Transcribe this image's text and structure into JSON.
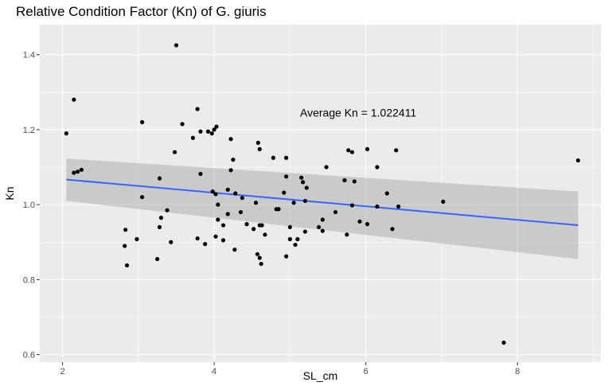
{
  "chart_data": {
    "type": "scatter",
    "title": "Relative Condition Factor (Kn) of G. giuris",
    "xlabel": "SL_cm",
    "ylabel": "Kn",
    "xlim": [
      1.7,
      9.1
    ],
    "ylim": [
      0.58,
      1.48
    ],
    "x_ticks": [
      2,
      4,
      6,
      8
    ],
    "y_ticks": [
      0.6,
      0.8,
      1.0,
      1.2,
      1.4
    ],
    "y_tick_labels": [
      "0.6",
      "0.8",
      "1.0",
      "1.2",
      "1.4"
    ],
    "grid": true,
    "background": "#ebebeb",
    "point_color": "#000000",
    "annotation": {
      "text": "Average Kn = 1.022411",
      "x": 5.9,
      "y": 1.245
    },
    "trend": {
      "method": "linear",
      "color": "#3366ff",
      "band_color": "#999999",
      "x_start": 2.05,
      "y_start": 1.067,
      "y_start_low": 1.01,
      "y_start_high": 1.123,
      "x_end": 8.8,
      "y_end": 0.945,
      "y_end_low": 0.855,
      "y_end_high": 1.035
    },
    "points": [
      {
        "x": 2.05,
        "y": 1.19
      },
      {
        "x": 2.15,
        "y": 1.28
      },
      {
        "x": 2.15,
        "y": 1.085
      },
      {
        "x": 2.2,
        "y": 1.088
      },
      {
        "x": 2.25,
        "y": 1.093
      },
      {
        "x": 2.82,
        "y": 0.89
      },
      {
        "x": 2.83,
        "y": 0.933
      },
      {
        "x": 2.85,
        "y": 0.838
      },
      {
        "x": 2.98,
        "y": 0.908
      },
      {
        "x": 3.05,
        "y": 1.22
      },
      {
        "x": 3.05,
        "y": 1.02
      },
      {
        "x": 3.25,
        "y": 0.855
      },
      {
        "x": 3.28,
        "y": 0.94
      },
      {
        "x": 3.28,
        "y": 1.07
      },
      {
        "x": 3.3,
        "y": 0.965
      },
      {
        "x": 3.38,
        "y": 0.985
      },
      {
        "x": 3.43,
        "y": 0.9
      },
      {
        "x": 3.48,
        "y": 1.14
      },
      {
        "x": 3.5,
        "y": 1.425
      },
      {
        "x": 3.58,
        "y": 1.215
      },
      {
        "x": 3.72,
        "y": 1.178
      },
      {
        "x": 3.78,
        "y": 1.255
      },
      {
        "x": 3.78,
        "y": 0.91
      },
      {
        "x": 3.82,
        "y": 1.195
      },
      {
        "x": 3.82,
        "y": 1.082
      },
      {
        "x": 3.88,
        "y": 0.895
      },
      {
        "x": 3.92,
        "y": 1.195
      },
      {
        "x": 3.97,
        "y": 1.19
      },
      {
        "x": 3.98,
        "y": 1.035
      },
      {
        "x": 4.0,
        "y": 1.2
      },
      {
        "x": 4.02,
        "y": 1.028
      },
      {
        "x": 4.02,
        "y": 0.915
      },
      {
        "x": 4.03,
        "y": 1.208
      },
      {
        "x": 4.05,
        "y": 0.96
      },
      {
        "x": 4.05,
        "y": 1.0
      },
      {
        "x": 4.12,
        "y": 0.905
      },
      {
        "x": 4.12,
        "y": 0.945
      },
      {
        "x": 4.18,
        "y": 1.04
      },
      {
        "x": 4.18,
        "y": 0.975
      },
      {
        "x": 4.22,
        "y": 1.092
      },
      {
        "x": 4.22,
        "y": 1.175
      },
      {
        "x": 4.25,
        "y": 1.12
      },
      {
        "x": 4.27,
        "y": 0.88
      },
      {
        "x": 4.28,
        "y": 1.03
      },
      {
        "x": 4.35,
        "y": 0.98
      },
      {
        "x": 4.37,
        "y": 1.018
      },
      {
        "x": 4.43,
        "y": 0.948
      },
      {
        "x": 4.52,
        "y": 0.935
      },
      {
        "x": 4.55,
        "y": 1.005
      },
      {
        "x": 4.57,
        "y": 0.868
      },
      {
        "x": 4.58,
        "y": 1.165
      },
      {
        "x": 4.6,
        "y": 0.858
      },
      {
        "x": 4.6,
        "y": 0.945
      },
      {
        "x": 4.6,
        "y": 1.148
      },
      {
        "x": 4.62,
        "y": 0.842
      },
      {
        "x": 4.63,
        "y": 0.945
      },
      {
        "x": 4.67,
        "y": 0.92
      },
      {
        "x": 4.78,
        "y": 1.125
      },
      {
        "x": 4.82,
        "y": 0.988
      },
      {
        "x": 4.85,
        "y": 0.988
      },
      {
        "x": 4.92,
        "y": 1.032
      },
      {
        "x": 4.95,
        "y": 0.862
      },
      {
        "x": 4.95,
        "y": 1.075
      },
      {
        "x": 4.95,
        "y": 1.125
      },
      {
        "x": 5.0,
        "y": 0.94
      },
      {
        "x": 5.0,
        "y": 0.908
      },
      {
        "x": 5.05,
        "y": 1.005
      },
      {
        "x": 5.07,
        "y": 0.893
      },
      {
        "x": 5.1,
        "y": 0.908
      },
      {
        "x": 5.15,
        "y": 1.072
      },
      {
        "x": 5.17,
        "y": 1.06
      },
      {
        "x": 5.2,
        "y": 0.928
      },
      {
        "x": 5.2,
        "y": 1.01
      },
      {
        "x": 5.22,
        "y": 1.045
      },
      {
        "x": 5.38,
        "y": 0.94
      },
      {
        "x": 5.43,
        "y": 0.96
      },
      {
        "x": 5.43,
        "y": 0.93
      },
      {
        "x": 5.48,
        "y": 1.1
      },
      {
        "x": 5.6,
        "y": 0.98
      },
      {
        "x": 5.72,
        "y": 1.065
      },
      {
        "x": 5.75,
        "y": 0.92
      },
      {
        "x": 5.77,
        "y": 1.145
      },
      {
        "x": 5.82,
        "y": 0.998
      },
      {
        "x": 5.82,
        "y": 1.14
      },
      {
        "x": 5.85,
        "y": 1.062
      },
      {
        "x": 5.92,
        "y": 0.955
      },
      {
        "x": 6.02,
        "y": 1.148
      },
      {
        "x": 6.02,
        "y": 0.948
      },
      {
        "x": 6.15,
        "y": 0.995
      },
      {
        "x": 6.15,
        "y": 1.1
      },
      {
        "x": 6.28,
        "y": 1.03
      },
      {
        "x": 6.35,
        "y": 0.935
      },
      {
        "x": 6.4,
        "y": 1.145
      },
      {
        "x": 6.43,
        "y": 0.995
      },
      {
        "x": 7.02,
        "y": 1.008
      },
      {
        "x": 7.82,
        "y": 0.632
      },
      {
        "x": 8.8,
        "y": 1.118
      }
    ]
  }
}
